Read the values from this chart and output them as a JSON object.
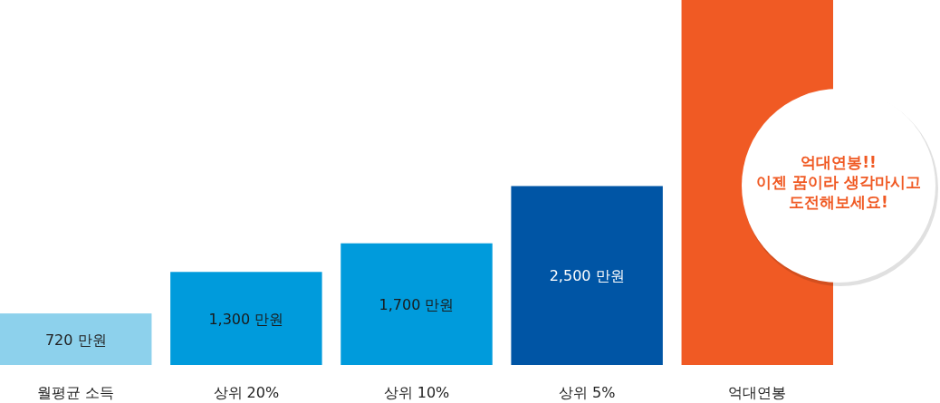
{
  "chart_data": {
    "type": "bar",
    "categories": [
      "월평균 소득",
      "상위 20%",
      "상위 10%",
      "상위 5%",
      "억대연봉"
    ],
    "values": [
      720,
      1300,
      1700,
      2500,
      5100
    ],
    "colors": [
      "#8dd1ec",
      "#009bdc",
      "#009bdc",
      "#0055a5",
      "#f05a24"
    ],
    "value_labels": [
      "720 만원",
      "1,300 만원",
      "1,700 만원",
      "2,500 만원",
      null
    ],
    "annotations": [
      "억대연봉!!\n이젠 꿈이라 생각마시고\n도전해보세요!"
    ]
  }
}
